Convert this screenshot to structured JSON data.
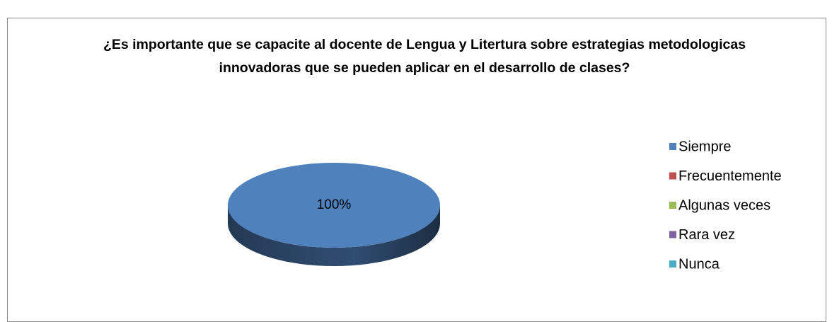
{
  "chart_data": {
    "type": "pie",
    "title": "¿Es importante que se capacite al docente de Lengua y Litertura sobre estrategias metodologicas innovadoras que se pueden aplicar en el desarrollo de clases?",
    "categories": [
      "Siempre",
      "Frecuentemente",
      "Algunas veces",
      "Rara vez",
      "Nunca"
    ],
    "values": [
      100,
      0,
      0,
      0,
      0
    ],
    "value_labels": [
      "100%",
      null,
      null,
      null,
      null
    ],
    "colors": [
      "#4f81bd",
      "#c0504d",
      "#9bbb59",
      "#8064a2",
      "#4bacc6"
    ],
    "legend": "right"
  }
}
